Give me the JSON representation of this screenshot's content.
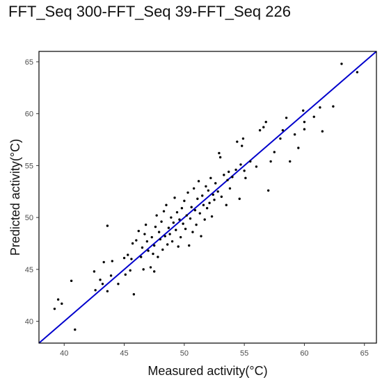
{
  "chart_data": {
    "type": "scatter",
    "title": "FFT_Seq 300-FFT_Seq 39-FFT_Seq 226",
    "xlabel": "Measured activity(°C)",
    "ylabel": "Predicted activity(°C)",
    "xlim": [
      37.9,
      66.0
    ],
    "ylim": [
      37.9,
      66.0
    ],
    "x_ticks": [
      40,
      45,
      50,
      55,
      60,
      65
    ],
    "y_ticks": [
      40,
      45,
      50,
      55,
      60,
      65
    ],
    "grid": false,
    "reference_line": {
      "from": [
        37.9,
        37.9
      ],
      "to": [
        66.0,
        66.0
      ],
      "color": "#0000cc"
    },
    "point_color": "#000000",
    "points": [
      [
        39.2,
        41.2
      ],
      [
        39.5,
        42.1
      ],
      [
        39.8,
        41.7
      ],
      [
        40.6,
        43.9
      ],
      [
        40.9,
        39.2
      ],
      [
        42.5,
        44.8
      ],
      [
        42.6,
        43.0
      ],
      [
        43.0,
        44.0
      ],
      [
        43.2,
        43.6
      ],
      [
        43.3,
        45.7
      ],
      [
        43.6,
        42.9
      ],
      [
        43.6,
        49.2
      ],
      [
        43.9,
        44.4
      ],
      [
        44.0,
        45.8
      ],
      [
        44.5,
        43.6
      ],
      [
        45.0,
        46.1
      ],
      [
        45.1,
        44.5
      ],
      [
        45.3,
        46.4
      ],
      [
        45.5,
        44.9
      ],
      [
        45.6,
        46.0
      ],
      [
        45.7,
        47.5
      ],
      [
        45.8,
        42.6
      ],
      [
        46.0,
        47.8
      ],
      [
        46.2,
        48.7
      ],
      [
        46.4,
        46.2
      ],
      [
        46.5,
        47.1
      ],
      [
        46.6,
        45.0
      ],
      [
        46.7,
        48.4
      ],
      [
        46.8,
        49.3
      ],
      [
        46.9,
        47.7
      ],
      [
        47.0,
        46.8
      ],
      [
        47.2,
        45.2
      ],
      [
        47.3,
        48.1
      ],
      [
        47.4,
        46.5
      ],
      [
        47.5,
        44.8
      ],
      [
        47.5,
        47.3
      ],
      [
        47.6,
        49.1
      ],
      [
        47.7,
        50.2
      ],
      [
        47.8,
        46.2
      ],
      [
        47.9,
        48.6
      ],
      [
        48.0,
        47.9
      ],
      [
        48.1,
        49.6
      ],
      [
        48.2,
        46.9
      ],
      [
        48.3,
        50.6
      ],
      [
        48.4,
        48.2
      ],
      [
        48.5,
        51.2
      ],
      [
        48.6,
        47.4
      ],
      [
        48.7,
        49.0
      ],
      [
        48.8,
        48.4
      ],
      [
        48.9,
        50.0
      ],
      [
        49.0,
        47.7
      ],
      [
        49.1,
        49.5
      ],
      [
        49.2,
        51.9
      ],
      [
        49.3,
        48.8
      ],
      [
        49.4,
        50.5
      ],
      [
        49.5,
        47.2
      ],
      [
        49.6,
        49.8
      ],
      [
        49.7,
        48.1
      ],
      [
        49.8,
        50.9
      ],
      [
        49.9,
        49.4
      ],
      [
        50.0,
        51.6
      ],
      [
        50.1,
        48.9
      ],
      [
        50.2,
        50.2
      ],
      [
        50.3,
        52.4
      ],
      [
        50.4,
        47.3
      ],
      [
        50.5,
        49.9
      ],
      [
        50.6,
        51.0
      ],
      [
        50.7,
        48.6
      ],
      [
        50.8,
        52.8
      ],
      [
        50.9,
        50.7
      ],
      [
        51.0,
        49.3
      ],
      [
        51.1,
        51.8
      ],
      [
        51.2,
        53.5
      ],
      [
        51.3,
        50.4
      ],
      [
        51.4,
        48.2
      ],
      [
        51.5,
        52.1
      ],
      [
        51.6,
        51.2
      ],
      [
        51.7,
        49.8
      ],
      [
        51.8,
        53.0
      ],
      [
        51.9,
        50.9
      ],
      [
        52.0,
        52.6
      ],
      [
        52.1,
        51.4
      ],
      [
        52.2,
        53.8
      ],
      [
        52.3,
        50.1
      ],
      [
        52.4,
        52.2
      ],
      [
        52.5,
        51.7
      ],
      [
        52.6,
        53.3
      ],
      [
        52.8,
        52.5
      ],
      [
        52.9,
        56.2
      ],
      [
        53.0,
        55.8
      ],
      [
        53.1,
        52.0
      ],
      [
        53.3,
        54.1
      ],
      [
        53.5,
        51.2
      ],
      [
        53.6,
        53.6
      ],
      [
        53.7,
        54.4
      ],
      [
        53.8,
        52.8
      ],
      [
        54.0,
        53.9
      ],
      [
        54.3,
        54.6
      ],
      [
        54.4,
        57.3
      ],
      [
        54.6,
        51.8
      ],
      [
        54.7,
        55.1
      ],
      [
        54.8,
        56.9
      ],
      [
        54.9,
        57.6
      ],
      [
        55.0,
        54.5
      ],
      [
        55.1,
        53.8
      ],
      [
        55.5,
        55.4
      ],
      [
        56.0,
        54.9
      ],
      [
        56.3,
        58.4
      ],
      [
        56.6,
        58.7
      ],
      [
        56.8,
        59.2
      ],
      [
        57.0,
        52.6
      ],
      [
        57.2,
        55.4
      ],
      [
        57.5,
        56.3
      ],
      [
        58.0,
        57.6
      ],
      [
        58.2,
        58.4
      ],
      [
        58.5,
        59.6
      ],
      [
        58.8,
        55.4
      ],
      [
        59.2,
        58.0
      ],
      [
        59.5,
        56.7
      ],
      [
        59.9,
        60.3
      ],
      [
        60.0,
        59.2
      ],
      [
        60.0,
        58.5
      ],
      [
        60.8,
        59.7
      ],
      [
        61.3,
        60.6
      ],
      [
        61.5,
        58.3
      ],
      [
        62.4,
        60.7
      ],
      [
        63.1,
        64.8
      ],
      [
        64.4,
        64.0
      ]
    ]
  }
}
